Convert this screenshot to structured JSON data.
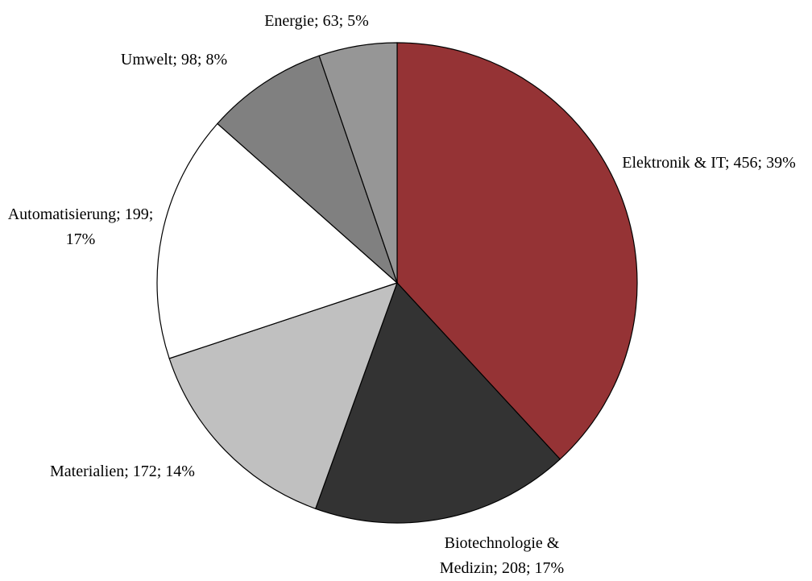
{
  "chart_data": {
    "type": "pie",
    "values": [
      456,
      208,
      172,
      199,
      98,
      63
    ],
    "value_labels": [
      "Elektronik & IT; 456; 39%",
      "Biotechnologie & Medizin; 208; 17%",
      "Materialien; 172; 14%",
      "Automatisierung; 199; 17%",
      "Umwelt; 98; 8%",
      "Energie; 63; 5%"
    ],
    "colors": [
      "#953335",
      "#333333",
      "#c0c0c0",
      "#ffffff",
      "#808080",
      "#969696"
    ]
  }
}
